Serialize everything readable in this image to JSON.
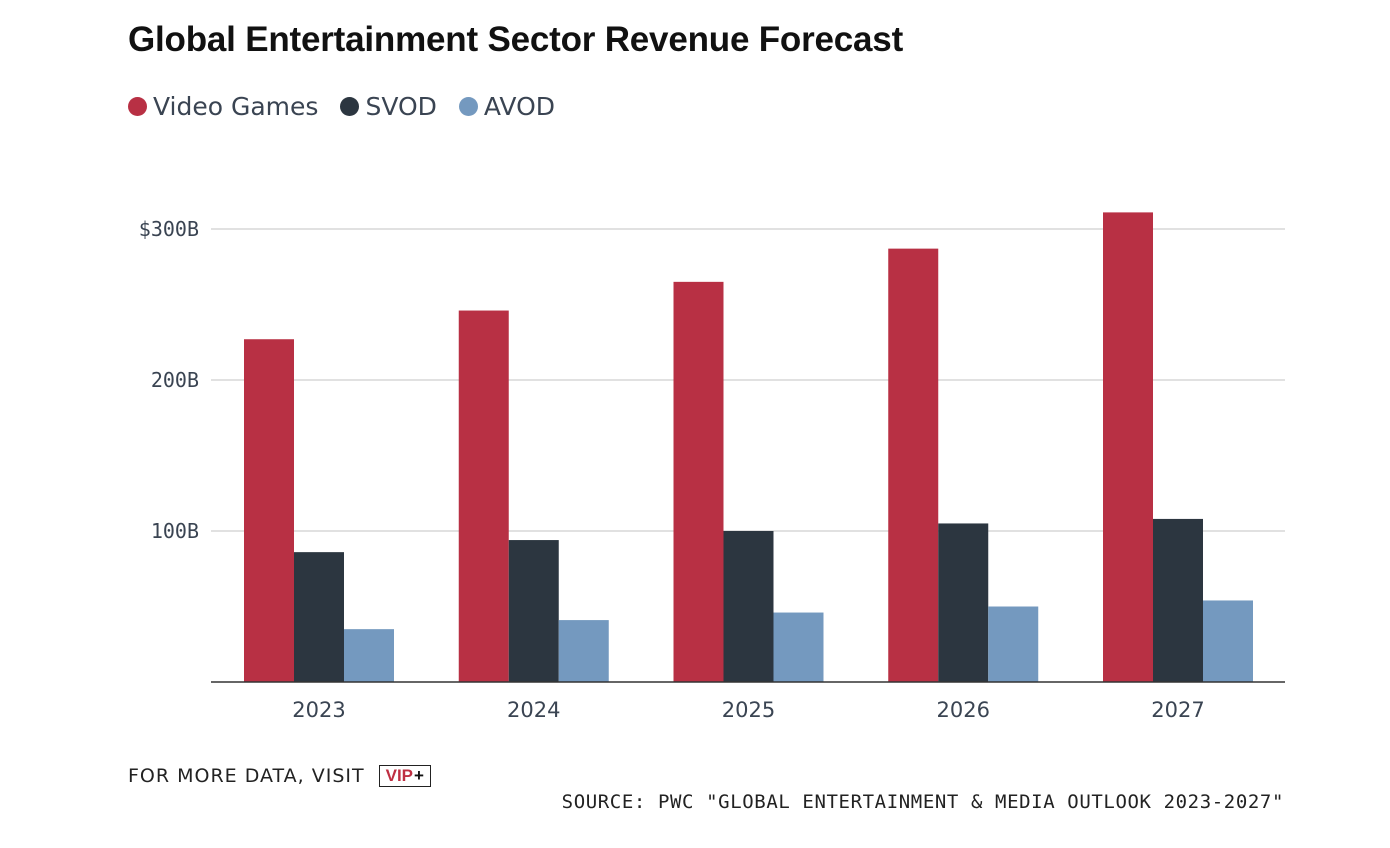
{
  "header": {
    "title": "Global Entertainment Sector Revenue Forecast"
  },
  "legend": [
    {
      "label": "Video Games",
      "color": "#b83044"
    },
    {
      "label": "SVOD",
      "color": "#2c3640"
    },
    {
      "label": "AVOD",
      "color": "#7499bf"
    }
  ],
  "footer": {
    "more_data": "FOR MORE DATA, VISIT",
    "vip_text": "VIP",
    "vip_plus": "+",
    "source": "SOURCE: PWC \"GLOBAL ENTERTAINMENT & MEDIA OUTLOOK 2023-2027\""
  },
  "chart_data": {
    "type": "bar",
    "title": "Global Entertainment Sector Revenue Forecast",
    "xlabel": "",
    "ylabel": "",
    "categories": [
      "2023",
      "2024",
      "2025",
      "2026",
      "2027"
    ],
    "series": [
      {
        "name": "Video Games",
        "color": "#b83044",
        "values": [
          227,
          246,
          265,
          287,
          311
        ]
      },
      {
        "name": "SVOD",
        "color": "#2c3640",
        "values": [
          86,
          94,
          100,
          105,
          108
        ]
      },
      {
        "name": "AVOD",
        "color": "#7499bf",
        "values": [
          35,
          41,
          46,
          50,
          54
        ]
      }
    ],
    "ylim": [
      0,
      320
    ],
    "y_ticks": [
      {
        "value": 100,
        "label": "100B"
      },
      {
        "value": 200,
        "label": "200B"
      },
      {
        "value": 300,
        "label": "$300B"
      }
    ],
    "grid": true,
    "legend_position": "top-left"
  }
}
